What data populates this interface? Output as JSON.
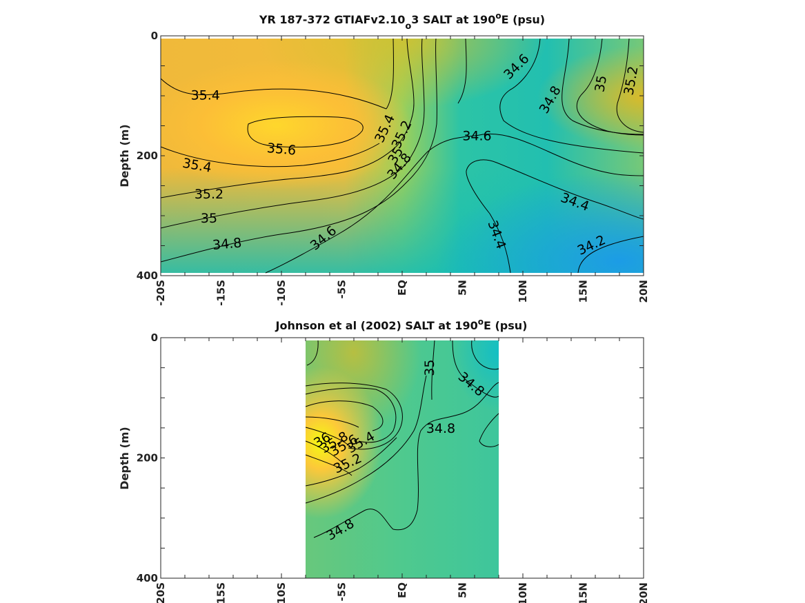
{
  "chart_data": [
    {
      "type": "heatmap",
      "title_pre": "YR 187-372 GTIAFv2.10",
      "title_sub": "o",
      "title_mid": "3 SALT at 190",
      "title_sup": "o",
      "title_post": "E (psu)",
      "ylabel": "Depth (m)",
      "xlim": [
        -20,
        20
      ],
      "ylim": [
        0,
        400
      ],
      "y_reversed": true,
      "x_ticks": [
        -20,
        -15,
        -10,
        -5,
        0,
        5,
        10,
        15,
        20
      ],
      "x_tick_labels": [
        "-20S",
        "-15S",
        "-10S",
        "-5S",
        "EQ",
        "5N",
        "10N",
        "15N",
        "20N"
      ],
      "y_ticks": [
        0,
        200,
        400
      ],
      "y_tick_labels": [
        "0",
        "200",
        "400"
      ],
      "colormap": "parula",
      "clim": [
        34.0,
        36.0
      ],
      "data_extent": [
        -20,
        20
      ],
      "colors": {
        "low": "#1a9ce8",
        "mid": "#14c2b8",
        "high": "#f6d52c",
        "max": "#fafa10"
      },
      "contour_labels": [
        {
          "text": "35.4",
          "x": -16.3,
          "y": 100,
          "angle": 0
        },
        {
          "text": "35.6",
          "x": -10.0,
          "y": 190,
          "angle": 5
        },
        {
          "text": "35.4",
          "x": -17.0,
          "y": 217,
          "angle": 10
        },
        {
          "text": "35.2",
          "x": -16.0,
          "y": 265,
          "angle": 0
        },
        {
          "text": "35",
          "x": -16.0,
          "y": 305,
          "angle": 0
        },
        {
          "text": "34.8",
          "x": -14.5,
          "y": 348,
          "angle": -5
        },
        {
          "text": "34.6",
          "x": -6.5,
          "y": 338,
          "angle": -40
        },
        {
          "text": "35.4",
          "x": -1.4,
          "y": 155,
          "angle": -65
        },
        {
          "text": "35.2",
          "x": 0.0,
          "y": 165,
          "angle": -65
        },
        {
          "text": "35",
          "x": -0.5,
          "y": 200,
          "angle": -60
        },
        {
          "text": "34.8",
          "x": -0.2,
          "y": 218,
          "angle": -50
        },
        {
          "text": "34.6",
          "x": 6.2,
          "y": 168,
          "angle": 0
        },
        {
          "text": "34.6",
          "x": 9.5,
          "y": 52,
          "angle": -45
        },
        {
          "text": "34.8",
          "x": 12.3,
          "y": 107,
          "angle": -60
        },
        {
          "text": "35",
          "x": 16.5,
          "y": 80,
          "angle": -80
        },
        {
          "text": "35.2",
          "x": 19.0,
          "y": 75,
          "angle": -80
        },
        {
          "text": "34.4",
          "x": 14.3,
          "y": 278,
          "angle": 20
        },
        {
          "text": "34.4",
          "x": 7.8,
          "y": 332,
          "angle": 70
        },
        {
          "text": "34.2",
          "x": 15.7,
          "y": 350,
          "angle": -25
        }
      ]
    },
    {
      "type": "heatmap",
      "title_pre": "Johnson et al (2002) SALT at 190",
      "title_sup": "o",
      "title_post": "E (psu)",
      "ylabel": "Depth (m)",
      "xlim": [
        -20,
        20
      ],
      "ylim": [
        0,
        400
      ],
      "y_reversed": true,
      "x_ticks": [
        -20,
        -15,
        -10,
        -5,
        0,
        5,
        10,
        15,
        20
      ],
      "x_tick_labels": [
        "-20S",
        "-15S",
        "-10S",
        "-5S",
        "EQ",
        "5N",
        "10N",
        "15N",
        "20N"
      ],
      "y_ticks": [
        0,
        200,
        400
      ],
      "y_tick_labels": [
        "0",
        "200",
        "400"
      ],
      "colormap": "parula",
      "clim": [
        34.0,
        36.0
      ],
      "data_extent": [
        -8,
        8
      ],
      "contour_labels": [
        {
          "text": "35",
          "x": 2.3,
          "y": 50,
          "angle": -90
        },
        {
          "text": "34.8",
          "x": 5.7,
          "y": 78,
          "angle": 40
        },
        {
          "text": "34.8",
          "x": 3.2,
          "y": 152,
          "angle": 0
        },
        {
          "text": "36",
          "x": -6.6,
          "y": 171,
          "angle": -30
        },
        {
          "text": "35.8",
          "x": -5.6,
          "y": 175,
          "angle": -30
        },
        {
          "text": "35.6",
          "x": -4.8,
          "y": 180,
          "angle": -30
        },
        {
          "text": "35.4",
          "x": -3.4,
          "y": 175,
          "angle": -30
        },
        {
          "text": "35.2",
          "x": -4.5,
          "y": 210,
          "angle": -25
        },
        {
          "text": "34.8",
          "x": -5.1,
          "y": 320,
          "angle": -30
        }
      ]
    }
  ]
}
